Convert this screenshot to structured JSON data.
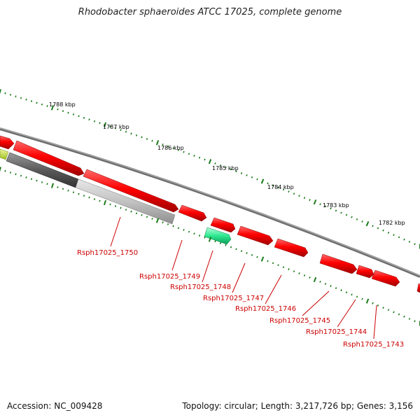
{
  "title": "Rhodobacter sphaeroides ATCC 17025, complete genome",
  "footer": {
    "accession": "Accession: NC_009428",
    "summary": "Topology: circular; Length: 3,217,726 bp; Genes: 3,156"
  },
  "colors": {
    "gene": "#ff0000",
    "gene_label": "#cc0000",
    "tick": "#1a7a1a",
    "backbone": "#808080",
    "highlight_gene": "#2ecf8a",
    "yellow_gene": "#c8e04a",
    "gray_dark": "#555555",
    "gray_light": "#bdbdbd"
  },
  "scale_labels": [
    "1788 kbp",
    "1787 kbp",
    "1786 kbp",
    "1785 kbp",
    "1784 kbp",
    "1783 kbp",
    "1782 kbp"
  ],
  "gene_labels": [
    "Rsph17025_1750",
    "Rsph17025_1749",
    "Rsph17025_1748",
    "Rsph17025_1747",
    "Rsph17025_1746",
    "Rsph17025_1745",
    "Rsph17025_1744",
    "Rsph17025_1743"
  ]
}
